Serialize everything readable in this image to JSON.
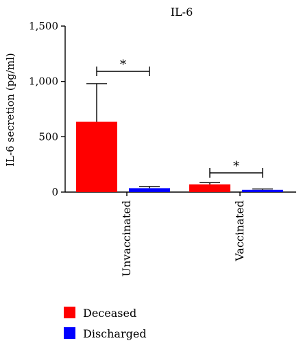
{
  "chart_data": {
    "type": "bar",
    "title": "IL-6",
    "ylabel": "IL-6 secretion (pg/ml)",
    "xlabel": "",
    "ylim": [
      0,
      1500
    ],
    "yticks": [
      "0",
      "500",
      "1,000",
      "1,500"
    ],
    "ytick_values": [
      0,
      500,
      1000,
      1500
    ],
    "categories": [
      "Unvaccinated",
      "Vaccinated"
    ],
    "series": [
      {
        "name": "Deceased",
        "color": "#ff0000",
        "values": [
          635,
          70
        ],
        "errors": [
          345,
          15
        ]
      },
      {
        "name": "Discharged",
        "color": "#0000ff",
        "values": [
          35,
          20
        ],
        "errors": [
          15,
          8
        ]
      }
    ],
    "annotations": [
      "*",
      "*"
    ],
    "legend_position": "bottom-left"
  }
}
